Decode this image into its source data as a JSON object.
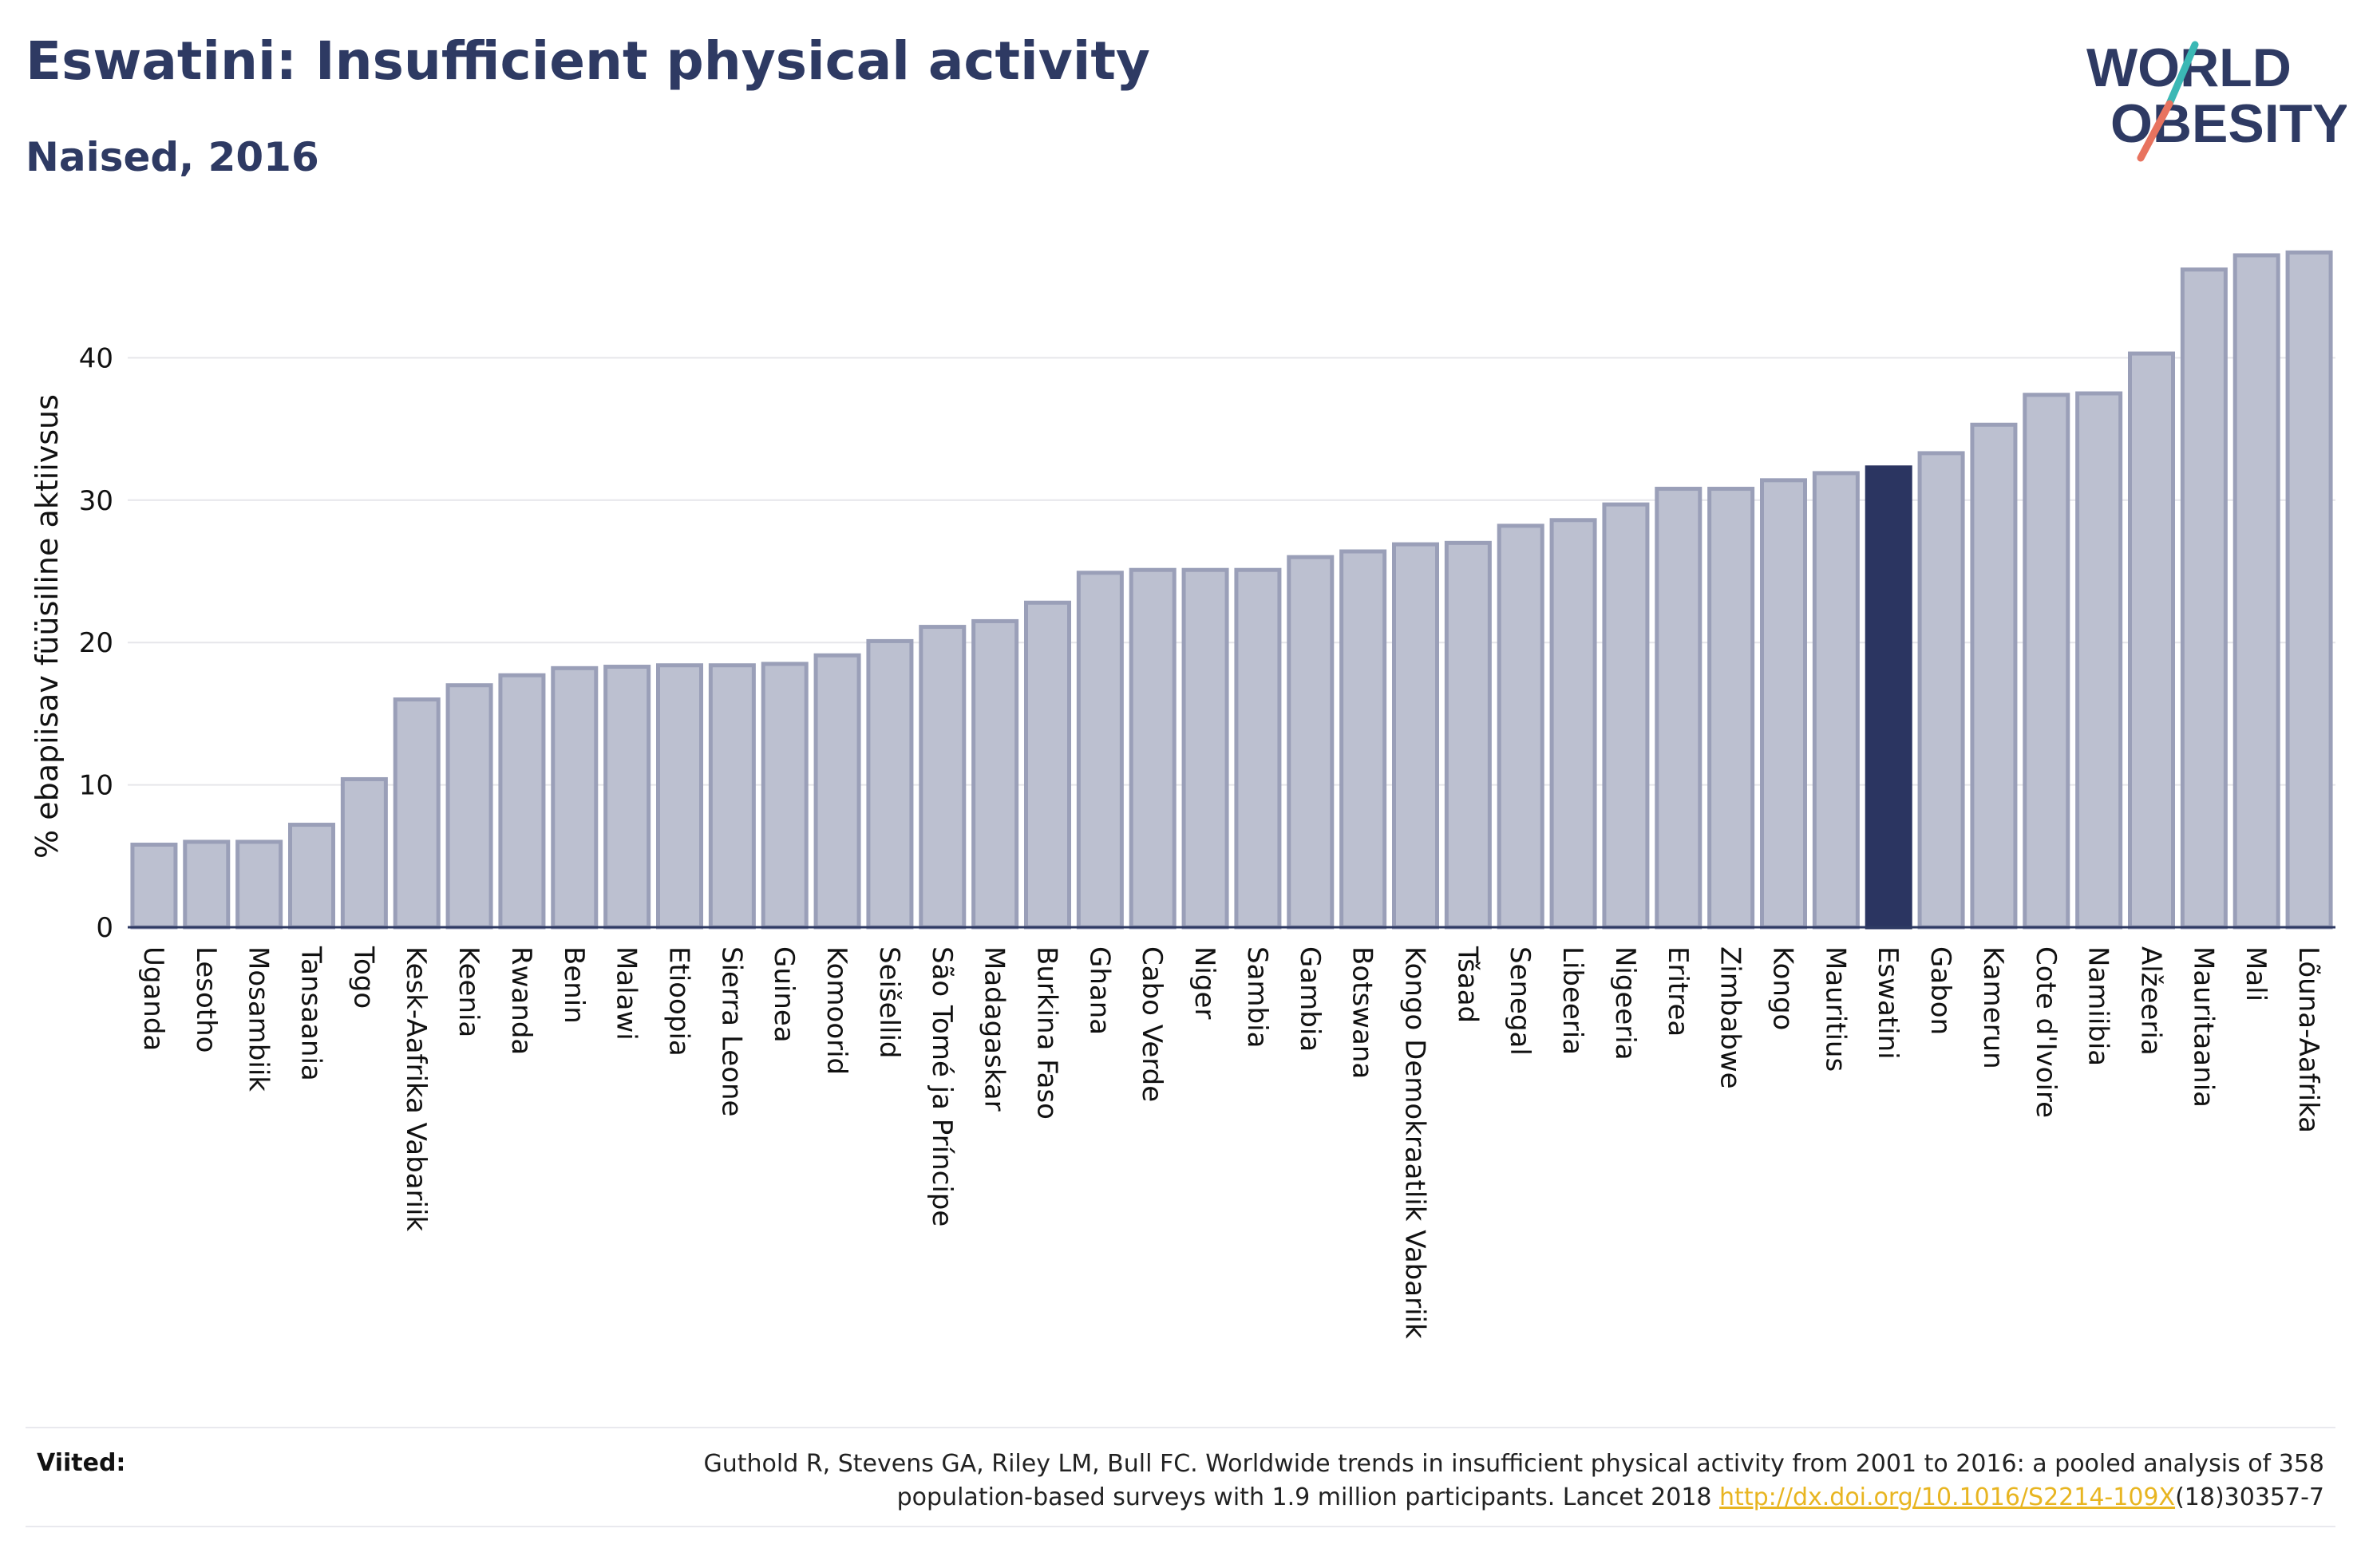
{
  "title": "Eswatini: Insufficient physical activity",
  "subtitle": "Naised, 2016",
  "logo": {
    "line1": "WORLD",
    "line2": "OBESITY",
    "icon": "world-obesity-logo"
  },
  "colors": {
    "bar": "#bcc0d0",
    "bar_border": "#9a9fb8",
    "highlight": "#2b3561",
    "text": "#2e3a63"
  },
  "chart_data": {
    "type": "bar",
    "title": "Eswatini: Insufficient physical activity",
    "subtitle": "Naised, 2016",
    "ylabel": "% ebapiisav füüsiline aktiivsus",
    "xlabel": "",
    "ylim": [
      0,
      50
    ],
    "yticks": [
      0,
      10,
      20,
      30,
      40
    ],
    "grid": true,
    "highlight": "Eswatini",
    "categories": [
      "Uganda",
      "Lesotho",
      "Mosambiik",
      "Tansaania",
      "Togo",
      "Kesk-Aafrika Vabariik",
      "Keenia",
      "Rwanda",
      "Benin",
      "Malawi",
      "Etioopia",
      "Sierra Leone",
      "Guinea",
      "Komoorid",
      "Seišellid",
      "São Tomé ja Príncipe",
      "Madagaskar",
      "Burkina Faso",
      "Ghana",
      "Cabo Verde",
      "Niger",
      "Sambia",
      "Gambia",
      "Botswana",
      "Kongo Demokraatlik Vabariik",
      "Tšaad",
      "Senegal",
      "Libeeria",
      "Nigeeria",
      "Eritrea",
      "Zimbabwe",
      "Kongo",
      "Mauritius",
      "Eswatini",
      "Gabon",
      "Kamerun",
      "Cote d'Ivoire",
      "Namiibia",
      "Alžeeria",
      "Mauritaania",
      "Mali",
      "Lõuna-Aafrika"
    ],
    "values": [
      5.8,
      6.0,
      6.0,
      7.2,
      10.4,
      16.0,
      17.0,
      17.7,
      18.2,
      18.3,
      18.4,
      18.4,
      18.5,
      19.1,
      20.1,
      21.1,
      21.5,
      22.8,
      24.9,
      25.1,
      25.1,
      25.1,
      26.0,
      26.4,
      26.9,
      27.0,
      28.2,
      28.6,
      29.7,
      30.8,
      30.8,
      31.4,
      31.9,
      32.3,
      33.3,
      35.3,
      37.4,
      37.5,
      40.3,
      46.2,
      47.2,
      47.4
    ]
  },
  "sources": {
    "label": "Viited:",
    "text_line1": "Guthold R, Stevens GA, Riley LM, Bull FC. Worldwide trends in insufficient physical activity from 2001 to 2016: a pooled analysis of 358",
    "text_line2_pre": "population-based surveys with 1.9 million participants. Lancet 2018 ",
    "link": "http://dx.doi.org/10.1016/S2214-109X",
    "text_line2_post": "(18)30357-7"
  }
}
